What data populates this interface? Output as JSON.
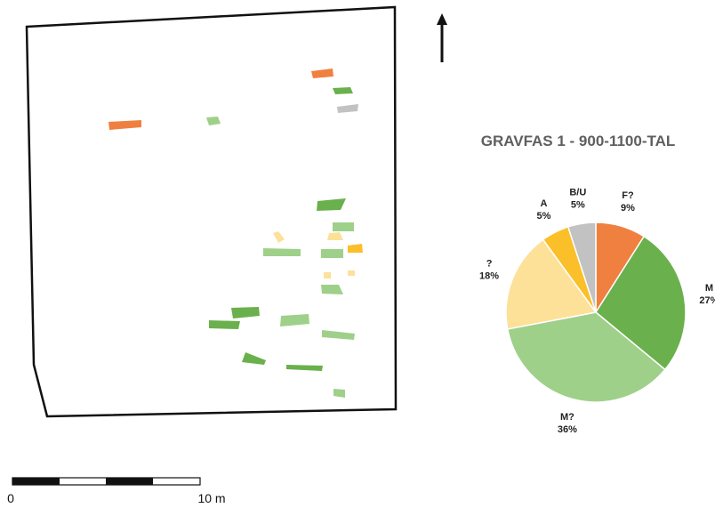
{
  "map": {
    "north_arrow": "north-arrow",
    "graves": [
      {
        "category": "F?"
      },
      {
        "category": "M"
      },
      {
        "category": "B/U"
      },
      {
        "category": "F?"
      },
      {
        "category": "M?"
      },
      {
        "category": "M"
      },
      {
        "category": "M?"
      },
      {
        "category": "?"
      },
      {
        "category": "?"
      },
      {
        "category": "A"
      },
      {
        "category": "M?"
      },
      {
        "category": "M?"
      },
      {
        "category": "?"
      },
      {
        "category": "?"
      },
      {
        "category": "M?"
      },
      {
        "category": "M"
      },
      {
        "category": "M"
      },
      {
        "category": "M?"
      },
      {
        "category": "M?"
      },
      {
        "category": "M"
      },
      {
        "category": "M"
      },
      {
        "category": "M?"
      }
    ]
  },
  "legend_colors": {
    "F?": "#f08040",
    "M": "#6ab04c",
    "M?": "#9ed08a",
    "?": "#fde199",
    "A": "#fbbf2a",
    "B/U": "#c2c2c2"
  },
  "scale_bar": {
    "start_label": "0",
    "end_label": "10 m"
  },
  "chart_data": {
    "type": "pie",
    "title": "GRAVFAS 1 - 900-1100-TAL",
    "slices": [
      {
        "label": "F?",
        "value": 9,
        "value_label": "9%",
        "color": "#f08040"
      },
      {
        "label": "M",
        "value": 27,
        "value_label": "27%",
        "color": "#6ab04c"
      },
      {
        "label": "M?",
        "value": 36,
        "value_label": "36%",
        "color": "#9ed08a"
      },
      {
        "label": "?",
        "value": 18,
        "value_label": "18%",
        "color": "#fde199"
      },
      {
        "label": "A",
        "value": 5,
        "value_label": "5%",
        "color": "#fbbf2a"
      },
      {
        "label": "B/U",
        "value": 5,
        "value_label": "5%",
        "color": "#c2c2c2"
      }
    ]
  }
}
